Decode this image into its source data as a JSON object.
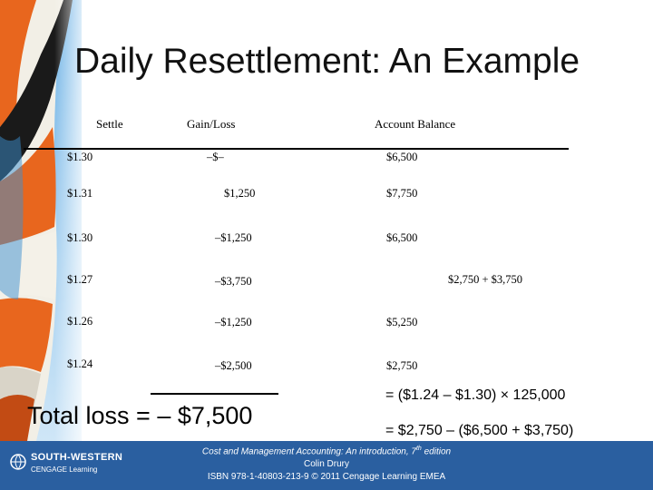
{
  "slide": {
    "title": "Daily Resettlement: An Example"
  },
  "table": {
    "headers": [
      "Settle",
      "Gain/Loss",
      "Account Balance"
    ],
    "rows": [
      {
        "settle": "$1.30",
        "gain_loss": "–$–",
        "balance": "$6,500"
      },
      {
        "settle": "$1.31",
        "gain_loss": "$1,250",
        "balance": "$7,750"
      },
      {
        "settle": "$1.30",
        "gain_loss": "–$1,250",
        "balance": "$6,500"
      },
      {
        "settle": "$1.27",
        "gain_loss": "–$3,750",
        "balance": "$2,750 + $3,750"
      },
      {
        "settle": "$1.26",
        "gain_loss": "–$1,250",
        "balance": "$5,250"
      },
      {
        "settle": "$1.24",
        "gain_loss": "–$2,500",
        "balance": "$2,750"
      }
    ]
  },
  "summary": {
    "total_loss": "Total loss = – $7,500",
    "calc_line1": "= ($1.24 – $1.30) × 125,000",
    "calc_line2": "= $2,750 – ($6,500 + $3,750)"
  },
  "footer": {
    "logo_name": "SOUTH-WESTERN",
    "logo_sub": "CENGAGE Learning",
    "book_title": "Cost and Management Accounting: An introduction, 7",
    "book_edition_sup": "th",
    "book_edition_suffix": " edition",
    "author": "Colin Drury",
    "isbn": "ISBN 978-1-40803-213-9 © 2011 Cengage Learning EMEA"
  },
  "colors": {
    "footer_bg": "#2a5fa0",
    "balloon_orange": "#e8661e",
    "balloon_blue": "#3b8fd0"
  }
}
